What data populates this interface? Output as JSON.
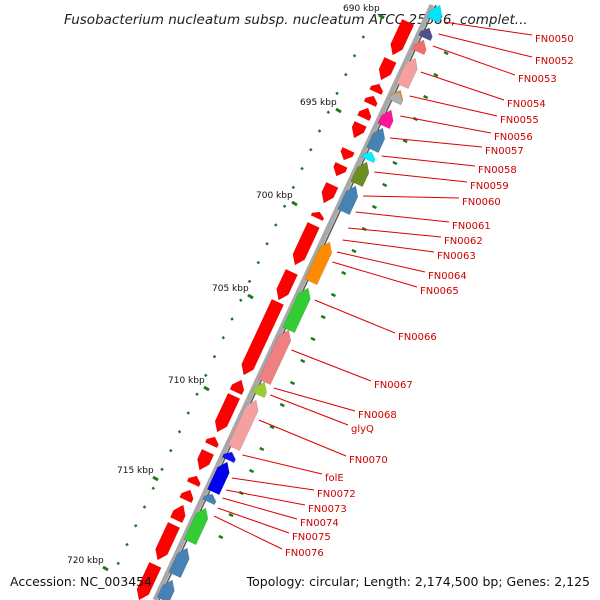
{
  "title": "Fusobacterium nucleatum subsp. nucleatum ATCC 25586, complet...",
  "accession": "Accession: NC_003454",
  "summary": "Topology: circular; Length: 2,174,500 bp; Genes: 2,125",
  "colors": {
    "backbone": "#8a8a8a",
    "forward_genes": "#ff0000",
    "tick": "#1a7a1a",
    "label_line": "#dd0000",
    "label_text": "#cc0000"
  },
  "scale_labels": [
    "690 kbp",
    "695 kbp",
    "700 kbp",
    "705 kbp",
    "710 kbp",
    "715 kbp",
    "720 kbp"
  ],
  "gene_labels": [
    "FN0050",
    "FN0052",
    "FN0053",
    "FN0054",
    "FN0055",
    "FN0056",
    "FN0057",
    "FN0058",
    "FN0059",
    "FN0060",
    "FN0061",
    "FN0062",
    "FN0063",
    "FN0064",
    "FN0065",
    "FN0066",
    "FN0067",
    "FN0068",
    "glyQ",
    "FN0070",
    "folE",
    "FN0072",
    "FN0073",
    "FN0074",
    "FN0075",
    "FN0076"
  ]
}
